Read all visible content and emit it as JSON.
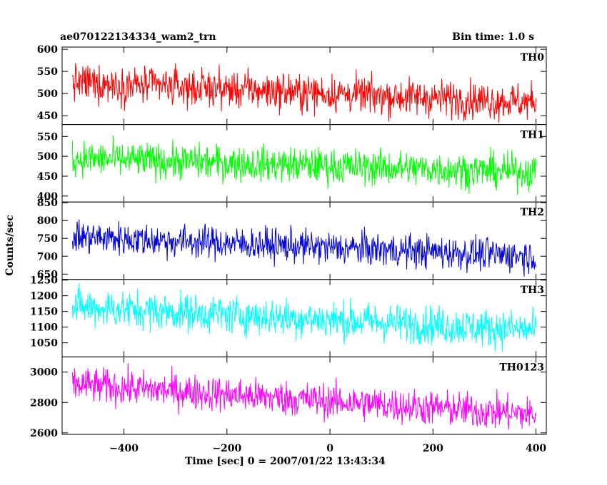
{
  "header": {
    "left": "ae070122134334_wam2_trn",
    "right": "Bin time: 1.0 s"
  },
  "chart_data": {
    "type": "line",
    "xlabel": "Time [sec] 0 = 2007/01/22 13:43:34",
    "ylabel": "Counts/sec",
    "xlim": [
      -520,
      420
    ],
    "xticks": [
      -400,
      -200,
      0,
      200,
      400
    ],
    "x_range": [
      -500,
      400
    ],
    "bin_time": 1.0,
    "panels": [
      {
        "name": "TH0",
        "color": "#ff0000",
        "ylim": [
          430,
          605
        ],
        "yticks": [
          450,
          500,
          550,
          600
        ],
        "trend_start": 525,
        "trend_end": 480,
        "noise_amplitude": 38
      },
      {
        "name": "TH1",
        "color": "#00ff00",
        "ylim": [
          385,
          580
        ],
        "yticks": [
          400,
          450,
          500,
          550
        ],
        "trend_start": 495,
        "trend_end": 460,
        "noise_amplitude": 40
      },
      {
        "name": "TH2",
        "color": "#0000dd",
        "ylim": [
          635,
          852
        ],
        "yticks": [
          650,
          700,
          750,
          800,
          850
        ],
        "trend_start": 755,
        "trend_end": 700,
        "noise_amplitude": 42
      },
      {
        "name": "TH3",
        "color": "#00ffff",
        "ylim": [
          1005,
          1252
        ],
        "yticks": [
          1050,
          1100,
          1150,
          1200,
          1250
        ],
        "trend_start": 1165,
        "trend_end": 1090,
        "noise_amplitude": 55
      },
      {
        "name": "TH0123",
        "color": "#ff00ff",
        "ylim": [
          2590,
          3100
        ],
        "yticks": [
          2600,
          2800,
          3000
        ],
        "trend_start": 2920,
        "trend_end": 2720,
        "noise_amplitude": 105
      }
    ]
  }
}
